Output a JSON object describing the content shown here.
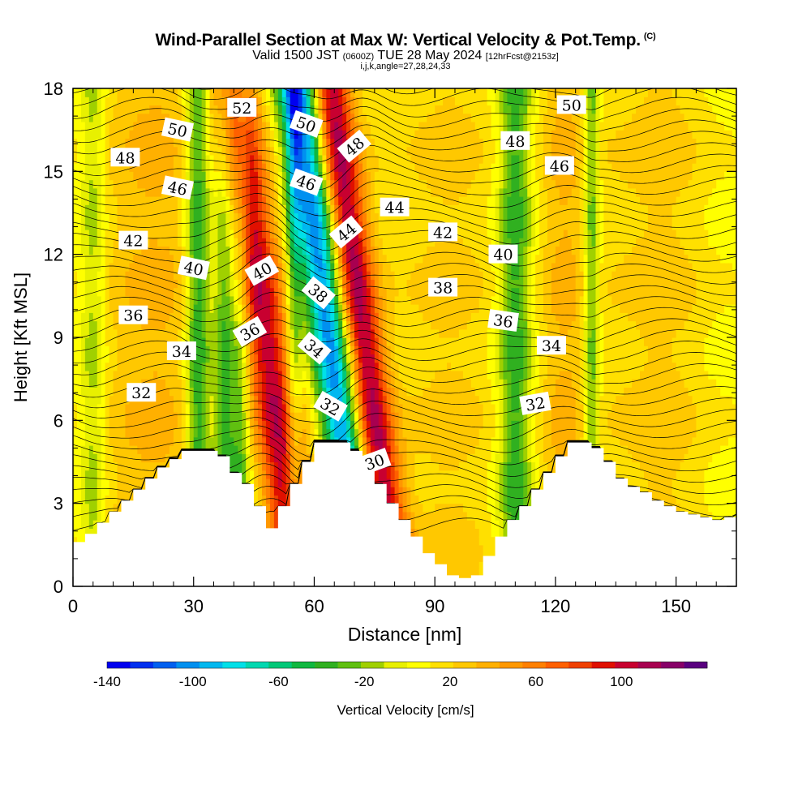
{
  "title": {
    "main": "Wind-Parallel Section at Max W: Vertical Velocity & Pot.Temp.",
    "copyright": "(C)",
    "valid_prefix": "Valid 1500 JST",
    "valid_utc": "(0600Z)",
    "valid_date": "TUE 28 May 2024",
    "forecast": "[12hrFcst@2153z]",
    "params": "i,j,k,angle=27,28,24,33"
  },
  "chart_data": {
    "type": "heatmap",
    "description_fields": "filled contours of vertical velocity (cm/s) with potential temperature isolines (labels in deg)",
    "xlabel": "Distance [nm]",
    "ylabel": "Height [Kft MSL]",
    "xlim": [
      0,
      165
    ],
    "ylim": [
      0,
      18
    ],
    "xticks": [
      0,
      30,
      60,
      90,
      120,
      150
    ],
    "yticks": [
      0,
      3,
      6,
      9,
      12,
      15,
      18
    ],
    "colorbar": {
      "label": "Vertical Velocity [cm/s]",
      "min": -140,
      "max": 140,
      "tick_labels": [
        -140,
        -100,
        -60,
        -20,
        20,
        60,
        100
      ],
      "colors": [
        "#0000f0",
        "#0030f0",
        "#0060f0",
        "#0090f0",
        "#00b8f0",
        "#00e0e8",
        "#00d8b0",
        "#00c878",
        "#10b840",
        "#30b020",
        "#60c010",
        "#a0d000",
        "#e8f000",
        "#ffff00",
        "#ffe000",
        "#ffc800",
        "#ffb000",
        "#ff9800",
        "#ff8000",
        "#ff6000",
        "#f04000",
        "#e01000",
        "#c80030",
        "#a80050",
        "#880068",
        "#5a0080"
      ]
    },
    "velocity_bands": [
      {
        "center_x": 5,
        "value": -20,
        "width": 3
      },
      {
        "center_x": 22,
        "value": 30,
        "width": 14
      },
      {
        "center_x": 31,
        "value": -50,
        "width": 3
      },
      {
        "center_x": 38,
        "value": -40,
        "width": 3
      },
      {
        "center_x": 42,
        "value": -25,
        "width": 2
      },
      {
        "center_x": 48,
        "value": 110,
        "width": 6
      },
      {
        "center_x": 55,
        "value": -35,
        "width": 2
      },
      {
        "center_x": 64,
        "value": -110,
        "width": 5
      },
      {
        "center_x": 72,
        "value": 110,
        "width": 5
      },
      {
        "center_x": 95,
        "value": 30,
        "width": 12
      },
      {
        "center_x": 110,
        "value": -40,
        "width": 4
      },
      {
        "center_x": 122,
        "value": 30,
        "width": 6
      },
      {
        "center_x": 129,
        "value": -35,
        "width": 2
      },
      {
        "center_x": 148,
        "value": 30,
        "width": 12
      }
    ],
    "terrain_heights_kft": [
      [
        0,
        1.6
      ],
      [
        3,
        1.9
      ],
      [
        6,
        2.3
      ],
      [
        9,
        2.7
      ],
      [
        12,
        3.1
      ],
      [
        15,
        3.5
      ],
      [
        18,
        3.9
      ],
      [
        21,
        4.3
      ],
      [
        24,
        4.6
      ],
      [
        27,
        4.9
      ],
      [
        30,
        4.9
      ],
      [
        33,
        4.9
      ],
      [
        36,
        4.7
      ],
      [
        39,
        4.1
      ],
      [
        42,
        3.7
      ],
      [
        45,
        2.9
      ],
      [
        48,
        2.1
      ],
      [
        51,
        2.9
      ],
      [
        54,
        3.7
      ],
      [
        57,
        4.5
      ],
      [
        60,
        5.2
      ],
      [
        63,
        5.2
      ],
      [
        66,
        5.2
      ],
      [
        69,
        4.9
      ],
      [
        72,
        4.3
      ],
      [
        75,
        3.7
      ],
      [
        78,
        3.0
      ],
      [
        81,
        2.4
      ],
      [
        84,
        1.8
      ],
      [
        87,
        1.2
      ],
      [
        90,
        0.8
      ],
      [
        93,
        0.4
      ],
      [
        96,
        0.3
      ],
      [
        99,
        0.4
      ],
      [
        102,
        1.1
      ],
      [
        105,
        1.8
      ],
      [
        108,
        2.4
      ],
      [
        111,
        2.9
      ],
      [
        114,
        3.5
      ],
      [
        117,
        4.1
      ],
      [
        120,
        4.7
      ],
      [
        123,
        5.2
      ],
      [
        126,
        5.2
      ],
      [
        129,
        5.0
      ],
      [
        132,
        4.5
      ],
      [
        135,
        3.9
      ],
      [
        138,
        3.6
      ],
      [
        141,
        3.4
      ],
      [
        144,
        3.1
      ],
      [
        147,
        2.9
      ],
      [
        150,
        2.7
      ],
      [
        153,
        2.6
      ],
      [
        156,
        2.5
      ],
      [
        159,
        2.4
      ],
      [
        162,
        2.5
      ],
      [
        165,
        2.6
      ]
    ],
    "theta_contour_labels": [
      {
        "text": "52",
        "x": 42,
        "y": 17.3,
        "angle": 0
      },
      {
        "text": "50",
        "x": 26,
        "y": 16.5,
        "angle": 12
      },
      {
        "text": "48",
        "x": 13,
        "y": 15.5,
        "angle": 0
      },
      {
        "text": "50",
        "x": 58,
        "y": 16.7,
        "angle": 20
      },
      {
        "text": "48",
        "x": 70,
        "y": 15.9,
        "angle": -40
      },
      {
        "text": "50",
        "x": 124,
        "y": 17.4,
        "angle": 0
      },
      {
        "text": "48",
        "x": 110,
        "y": 16.1,
        "angle": 0
      },
      {
        "text": "46",
        "x": 26,
        "y": 14.4,
        "angle": 12
      },
      {
        "text": "46",
        "x": 58,
        "y": 14.6,
        "angle": 20
      },
      {
        "text": "46",
        "x": 121,
        "y": 15.2,
        "angle": 0
      },
      {
        "text": "44",
        "x": 80,
        "y": 13.7,
        "angle": 0
      },
      {
        "text": "44",
        "x": 68,
        "y": 12.8,
        "angle": -40
      },
      {
        "text": "42",
        "x": 15,
        "y": 12.5,
        "angle": 0
      },
      {
        "text": "42",
        "x": 92,
        "y": 12.8,
        "angle": 0
      },
      {
        "text": "40",
        "x": 107,
        "y": 12.0,
        "angle": 0
      },
      {
        "text": "40",
        "x": 30,
        "y": 11.5,
        "angle": 12
      },
      {
        "text": "40",
        "x": 47,
        "y": 11.4,
        "angle": -30
      },
      {
        "text": "38",
        "x": 92,
        "y": 10.8,
        "angle": 0
      },
      {
        "text": "38",
        "x": 61,
        "y": 10.6,
        "angle": 40
      },
      {
        "text": "36",
        "x": 15,
        "y": 9.8,
        "angle": 0
      },
      {
        "text": "36",
        "x": 107,
        "y": 9.6,
        "angle": 8
      },
      {
        "text": "36",
        "x": 44,
        "y": 9.2,
        "angle": -30
      },
      {
        "text": "34",
        "x": 60,
        "y": 8.6,
        "angle": 40
      },
      {
        "text": "34",
        "x": 27,
        "y": 8.5,
        "angle": 0
      },
      {
        "text": "34",
        "x": 119,
        "y": 8.7,
        "angle": 0
      },
      {
        "text": "32",
        "x": 17,
        "y": 7.0,
        "angle": 0
      },
      {
        "text": "32",
        "x": 64,
        "y": 6.5,
        "angle": 30
      },
      {
        "text": "32",
        "x": 115,
        "y": 6.6,
        "angle": -10
      },
      {
        "text": "30",
        "x": 75,
        "y": 4.5,
        "angle": -20
      }
    ],
    "grid": false
  }
}
